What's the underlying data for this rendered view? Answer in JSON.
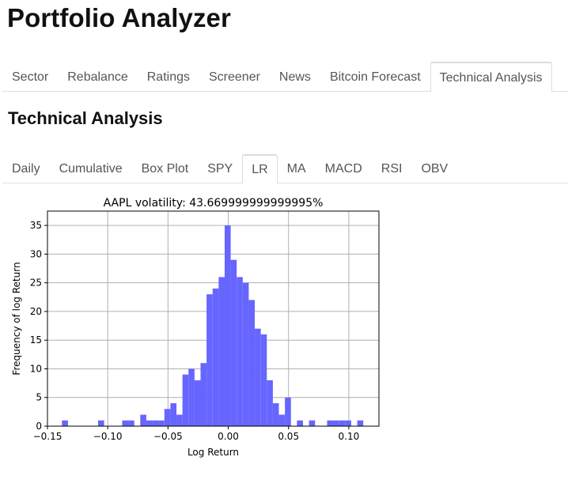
{
  "app": {
    "title": "Portfolio Analyzer"
  },
  "main_tabs": [
    {
      "label": "Sector",
      "active": false
    },
    {
      "label": "Rebalance",
      "active": false
    },
    {
      "label": "Ratings",
      "active": false
    },
    {
      "label": "Screener",
      "active": false
    },
    {
      "label": "News",
      "active": false
    },
    {
      "label": "Bitcoin Forecast",
      "active": false
    },
    {
      "label": "Technical Analysis",
      "active": true
    }
  ],
  "section": {
    "title": "Technical Analysis"
  },
  "sub_tabs": [
    {
      "label": "Daily",
      "active": false
    },
    {
      "label": "Cumulative",
      "active": false
    },
    {
      "label": "Box Plot",
      "active": false
    },
    {
      "label": "SPY",
      "active": false
    },
    {
      "label": "LR",
      "active": true
    },
    {
      "label": "MA",
      "active": false
    },
    {
      "label": "MACD",
      "active": false
    },
    {
      "label": "RSI",
      "active": false
    },
    {
      "label": "OBV",
      "active": false
    }
  ],
  "colors": {
    "bar": "#6666ff",
    "grid": "#b0b0b0",
    "active_tab_border": "#dcdcdc"
  },
  "chart_data": {
    "type": "bar",
    "title": "AAPL volatility: 43.669999999999995%",
    "xlabel": "Log Return",
    "ylabel": "Frequency of log Return",
    "xlim": [
      -0.15,
      0.125
    ],
    "ylim": [
      0,
      37.5
    ],
    "xticks": [
      -0.15,
      -0.1,
      -0.05,
      0.0,
      0.05,
      0.1
    ],
    "xtick_labels": [
      "−0.15",
      "−0.10",
      "−0.05",
      "0.00",
      "0.05",
      "0.10"
    ],
    "yticks": [
      0,
      5,
      10,
      15,
      20,
      25,
      30,
      35
    ],
    "grid": true,
    "bin_width": 0.005,
    "bins": [
      {
        "x0": -0.138,
        "count": 1
      },
      {
        "x0": -0.108,
        "count": 1
      },
      {
        "x0": -0.088,
        "count": 1
      },
      {
        "x0": -0.083,
        "count": 1
      },
      {
        "x0": -0.073,
        "count": 2
      },
      {
        "x0": -0.068,
        "count": 1
      },
      {
        "x0": -0.063,
        "count": 1
      },
      {
        "x0": -0.058,
        "count": 1
      },
      {
        "x0": -0.053,
        "count": 3
      },
      {
        "x0": -0.048,
        "count": 4
      },
      {
        "x0": -0.043,
        "count": 2
      },
      {
        "x0": -0.038,
        "count": 9
      },
      {
        "x0": -0.033,
        "count": 10
      },
      {
        "x0": -0.028,
        "count": 8
      },
      {
        "x0": -0.023,
        "count": 11
      },
      {
        "x0": -0.018,
        "count": 23
      },
      {
        "x0": -0.013,
        "count": 24
      },
      {
        "x0": -0.008,
        "count": 26
      },
      {
        "x0": -0.003,
        "count": 35
      },
      {
        "x0": 0.002,
        "count": 29
      },
      {
        "x0": 0.007,
        "count": 26
      },
      {
        "x0": 0.012,
        "count": 25
      },
      {
        "x0": 0.017,
        "count": 22
      },
      {
        "x0": 0.022,
        "count": 17
      },
      {
        "x0": 0.027,
        "count": 16
      },
      {
        "x0": 0.032,
        "count": 8
      },
      {
        "x0": 0.037,
        "count": 4
      },
      {
        "x0": 0.042,
        "count": 2
      },
      {
        "x0": 0.047,
        "count": 5
      },
      {
        "x0": 0.057,
        "count": 1
      },
      {
        "x0": 0.067,
        "count": 1
      },
      {
        "x0": 0.082,
        "count": 1
      },
      {
        "x0": 0.087,
        "count": 1
      },
      {
        "x0": 0.092,
        "count": 1
      },
      {
        "x0": 0.097,
        "count": 1
      },
      {
        "x0": 0.107,
        "count": 1
      }
    ]
  }
}
